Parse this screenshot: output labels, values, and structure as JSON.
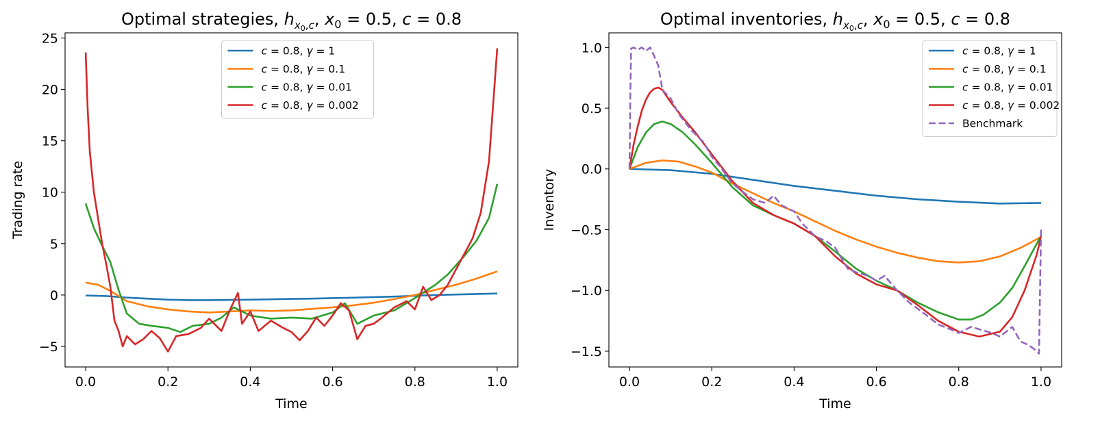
{
  "chart_data": [
    {
      "type": "line",
      "title": "Optimal strategies, h_{x0,c}, x0 = 0.5, c = 0.8",
      "title_parts": [
        "Optimal strategies, ",
        "h",
        "x",
        "0",
        ",",
        "c",
        ", ",
        "x",
        "0",
        " = 0.5, ",
        "c",
        " = 0.8"
      ],
      "xlabel": "Time",
      "ylabel": "Trading rate",
      "xlim": [
        -0.05,
        1.05
      ],
      "ylim": [
        -7.0,
        25.5
      ],
      "xticks": [
        0.0,
        0.2,
        0.4,
        0.6,
        0.8,
        1.0
      ],
      "xtick_labels": [
        "0.0",
        "0.2",
        "0.4",
        "0.6",
        "0.8",
        "1.0"
      ],
      "yticks": [
        -5,
        0,
        5,
        10,
        15,
        20,
        25
      ],
      "ytick_labels": [
        "−5",
        "0",
        "5",
        "10",
        "15",
        "20",
        "25"
      ],
      "legend_position": "upper-center",
      "series": [
        {
          "name": "c = 0.8, γ = 1",
          "label_parts": [
            "c",
            " = 0.8, ",
            "γ",
            " = 1"
          ],
          "color": "#1f77b4",
          "dash": "solid",
          "x": [
            0.0,
            0.05,
            0.1,
            0.15,
            0.2,
            0.25,
            0.3,
            0.35,
            0.4,
            0.45,
            0.5,
            0.55,
            0.6,
            0.65,
            0.7,
            0.75,
            0.8,
            0.85,
            0.9,
            0.95,
            1.0
          ],
          "y": [
            -0.05,
            -0.1,
            -0.25,
            -0.35,
            -0.45,
            -0.5,
            -0.5,
            -0.48,
            -0.45,
            -0.42,
            -0.38,
            -0.35,
            -0.3,
            -0.26,
            -0.2,
            -0.15,
            -0.08,
            0.0,
            0.05,
            0.1,
            0.15
          ]
        },
        {
          "name": "c = 0.8, γ = 0.1",
          "label_parts": [
            "c",
            " = 0.8, ",
            "γ",
            " = 0.1"
          ],
          "color": "#ff7f0e",
          "dash": "solid",
          "x": [
            0.0,
            0.03,
            0.06,
            0.1,
            0.15,
            0.2,
            0.25,
            0.3,
            0.35,
            0.4,
            0.45,
            0.5,
            0.55,
            0.6,
            0.65,
            0.7,
            0.75,
            0.8,
            0.85,
            0.9,
            0.95,
            1.0
          ],
          "y": [
            1.2,
            1.0,
            0.4,
            -0.6,
            -1.1,
            -1.4,
            -1.6,
            -1.7,
            -1.6,
            -1.5,
            -1.55,
            -1.5,
            -1.35,
            -1.2,
            -1.0,
            -0.75,
            -0.4,
            0.0,
            0.5,
            1.0,
            1.6,
            2.3
          ]
        },
        {
          "name": "c = 0.8, γ = 0.01",
          "label_parts": [
            "c",
            " = 0.8, ",
            "γ",
            " = 0.01"
          ],
          "color": "#2ca02c",
          "dash": "solid",
          "x": [
            0.0,
            0.02,
            0.04,
            0.06,
            0.08,
            0.1,
            0.13,
            0.16,
            0.2,
            0.23,
            0.26,
            0.3,
            0.33,
            0.36,
            0.4,
            0.45,
            0.5,
            0.55,
            0.6,
            0.63,
            0.66,
            0.7,
            0.75,
            0.8,
            0.85,
            0.88,
            0.92,
            0.95,
            0.98,
            1.0
          ],
          "y": [
            8.9,
            6.5,
            4.8,
            3.2,
            0.5,
            -1.8,
            -2.8,
            -3.0,
            -3.2,
            -3.6,
            -3.0,
            -2.8,
            -2.2,
            -1.2,
            -2.0,
            -2.3,
            -2.2,
            -2.3,
            -1.7,
            -0.8,
            -2.8,
            -2.0,
            -1.5,
            -0.3,
            1.0,
            2.0,
            3.8,
            5.3,
            7.5,
            10.8
          ]
        },
        {
          "name": "c = 0.8, γ = 0.002",
          "label_parts": [
            "c",
            " = 0.8, ",
            "γ",
            " = 0.002"
          ],
          "color": "#d62728",
          "dash": "solid",
          "x": [
            0.0,
            0.005,
            0.01,
            0.02,
            0.03,
            0.04,
            0.05,
            0.06,
            0.07,
            0.08,
            0.09,
            0.1,
            0.12,
            0.14,
            0.16,
            0.18,
            0.2,
            0.22,
            0.25,
            0.28,
            0.3,
            0.33,
            0.35,
            0.37,
            0.38,
            0.4,
            0.42,
            0.45,
            0.48,
            0.5,
            0.52,
            0.54,
            0.56,
            0.58,
            0.6,
            0.62,
            0.64,
            0.66,
            0.68,
            0.7,
            0.72,
            0.75,
            0.78,
            0.8,
            0.82,
            0.84,
            0.86,
            0.88,
            0.9,
            0.92,
            0.94,
            0.96,
            0.98,
            1.0
          ],
          "y": [
            23.6,
            18.0,
            14.0,
            10.0,
            7.5,
            5.0,
            3.0,
            0.8,
            -2.5,
            -3.5,
            -5.0,
            -4.0,
            -4.8,
            -4.3,
            -3.5,
            -4.2,
            -5.5,
            -4.0,
            -3.8,
            -3.2,
            -2.3,
            -3.5,
            -1.5,
            0.2,
            -2.8,
            -1.6,
            -3.5,
            -2.5,
            -3.2,
            -3.6,
            -4.4,
            -3.5,
            -2.2,
            -3.0,
            -2.0,
            -0.8,
            -1.5,
            -4.3,
            -3.0,
            -2.8,
            -2.2,
            -1.2,
            -0.6,
            -1.4,
            0.8,
            -0.5,
            0.0,
            1.0,
            2.5,
            4.0,
            5.5,
            8.0,
            13.0,
            24.0
          ]
        }
      ]
    },
    {
      "type": "line",
      "title": "Optimal inventories, h_{x0,c}, x0 = 0.5, c = 0.8",
      "title_parts": [
        "Optimal inventories, ",
        "h",
        "x",
        "0",
        ",",
        "c",
        ", ",
        "x",
        "0",
        " = 0.5, ",
        "c",
        " = 0.8"
      ],
      "xlabel": "Time",
      "ylabel": "Inventory",
      "xlim": [
        -0.05,
        1.05
      ],
      "ylim": [
        -1.63,
        1.12
      ],
      "xticks": [
        0.0,
        0.2,
        0.4,
        0.6,
        0.8,
        1.0
      ],
      "xtick_labels": [
        "0.0",
        "0.2",
        "0.4",
        "0.6",
        "0.8",
        "1.0"
      ],
      "yticks": [
        -1.5,
        -1.0,
        -0.5,
        0.0,
        0.5,
        1.0
      ],
      "ytick_labels": [
        "−1.5",
        "−1.0",
        "−0.5",
        "0.0",
        "0.5",
        "1.0"
      ],
      "legend_position": "upper-right",
      "series": [
        {
          "name": "c = 0.8, γ = 1",
          "label_parts": [
            "c",
            " = 0.8, ",
            "γ",
            " = 1"
          ],
          "color": "#1f77b4",
          "dash": "solid",
          "x": [
            0.0,
            0.1,
            0.2,
            0.3,
            0.4,
            0.5,
            0.6,
            0.7,
            0.8,
            0.9,
            1.0
          ],
          "y": [
            0.0,
            -0.01,
            -0.04,
            -0.09,
            -0.14,
            -0.18,
            -0.22,
            -0.25,
            -0.27,
            -0.285,
            -0.28
          ]
        },
        {
          "name": "c = 0.8, γ = 0.1",
          "label_parts": [
            "c",
            " = 0.8, ",
            "γ",
            " = 0.1"
          ],
          "color": "#ff7f0e",
          "dash": "solid",
          "x": [
            0.0,
            0.04,
            0.08,
            0.12,
            0.16,
            0.2,
            0.25,
            0.3,
            0.35,
            0.4,
            0.45,
            0.5,
            0.55,
            0.6,
            0.65,
            0.7,
            0.75,
            0.8,
            0.85,
            0.9,
            0.95,
            1.0
          ],
          "y": [
            0.0,
            0.05,
            0.07,
            0.06,
            0.02,
            -0.03,
            -0.12,
            -0.2,
            -0.28,
            -0.35,
            -0.43,
            -0.51,
            -0.58,
            -0.64,
            -0.69,
            -0.73,
            -0.76,
            -0.77,
            -0.76,
            -0.72,
            -0.65,
            -0.56
          ]
        },
        {
          "name": "c = 0.8, γ = 0.01",
          "label_parts": [
            "c",
            " = 0.8, ",
            "γ",
            " = 0.01"
          ],
          "color": "#2ca02c",
          "dash": "solid",
          "x": [
            0.0,
            0.02,
            0.04,
            0.06,
            0.08,
            0.1,
            0.13,
            0.16,
            0.2,
            0.25,
            0.3,
            0.35,
            0.4,
            0.45,
            0.5,
            0.55,
            0.6,
            0.65,
            0.7,
            0.75,
            0.8,
            0.83,
            0.86,
            0.9,
            0.93,
            0.96,
            1.0
          ],
          "y": [
            0.0,
            0.18,
            0.3,
            0.37,
            0.39,
            0.37,
            0.3,
            0.2,
            0.05,
            -0.15,
            -0.3,
            -0.38,
            -0.45,
            -0.55,
            -0.68,
            -0.82,
            -0.92,
            -1.0,
            -1.1,
            -1.18,
            -1.24,
            -1.24,
            -1.2,
            -1.1,
            -0.98,
            -0.8,
            -0.55
          ]
        },
        {
          "name": "c = 0.8, γ = 0.002",
          "label_parts": [
            "c",
            " = 0.8, ",
            "γ",
            " = 0.002"
          ],
          "color": "#d62728",
          "dash": "solid",
          "x": [
            0.0,
            0.01,
            0.02,
            0.03,
            0.04,
            0.05,
            0.06,
            0.07,
            0.08,
            0.1,
            0.13,
            0.16,
            0.2,
            0.25,
            0.3,
            0.35,
            0.4,
            0.45,
            0.5,
            0.55,
            0.6,
            0.65,
            0.7,
            0.75,
            0.8,
            0.85,
            0.9,
            0.93,
            0.96,
            0.99,
            1.0
          ],
          "y": [
            0.0,
            0.2,
            0.35,
            0.48,
            0.57,
            0.63,
            0.66,
            0.67,
            0.65,
            0.55,
            0.42,
            0.3,
            0.12,
            -0.1,
            -0.28,
            -0.38,
            -0.45,
            -0.55,
            -0.72,
            -0.86,
            -0.95,
            -1.0,
            -1.12,
            -1.25,
            -1.34,
            -1.38,
            -1.34,
            -1.22,
            -1.0,
            -0.7,
            -0.55
          ]
        },
        {
          "name": "Benchmark",
          "label_parts": [
            "Benchmark"
          ],
          "color": "#9467bd",
          "dash": "dashed",
          "x": [
            0.0,
            0.002,
            0.004,
            0.01,
            0.02,
            0.03,
            0.04,
            0.05,
            0.06,
            0.07,
            0.08,
            0.1,
            0.12,
            0.15,
            0.18,
            0.2,
            0.22,
            0.25,
            0.28,
            0.3,
            0.33,
            0.35,
            0.37,
            0.4,
            0.42,
            0.45,
            0.48,
            0.5,
            0.53,
            0.55,
            0.58,
            0.6,
            0.62,
            0.65,
            0.68,
            0.7,
            0.72,
            0.75,
            0.78,
            0.8,
            0.83,
            0.85,
            0.88,
            0.9,
            0.93,
            0.95,
            0.97,
            0.99,
            0.995,
            1.0
          ],
          "y": [
            0.0,
            0.6,
            0.99,
            1.0,
            0.98,
            1.0,
            0.97,
            1.0,
            0.93,
            0.85,
            0.65,
            0.58,
            0.45,
            0.32,
            0.22,
            0.1,
            0.02,
            -0.12,
            -0.2,
            -0.25,
            -0.28,
            -0.22,
            -0.3,
            -0.35,
            -0.45,
            -0.55,
            -0.6,
            -0.65,
            -0.82,
            -0.85,
            -0.88,
            -0.92,
            -0.88,
            -1.0,
            -1.1,
            -1.15,
            -1.2,
            -1.28,
            -1.32,
            -1.35,
            -1.3,
            -1.32,
            -1.35,
            -1.38,
            -1.3,
            -1.42,
            -1.45,
            -1.5,
            -1.52,
            -0.48
          ]
        }
      ]
    }
  ]
}
